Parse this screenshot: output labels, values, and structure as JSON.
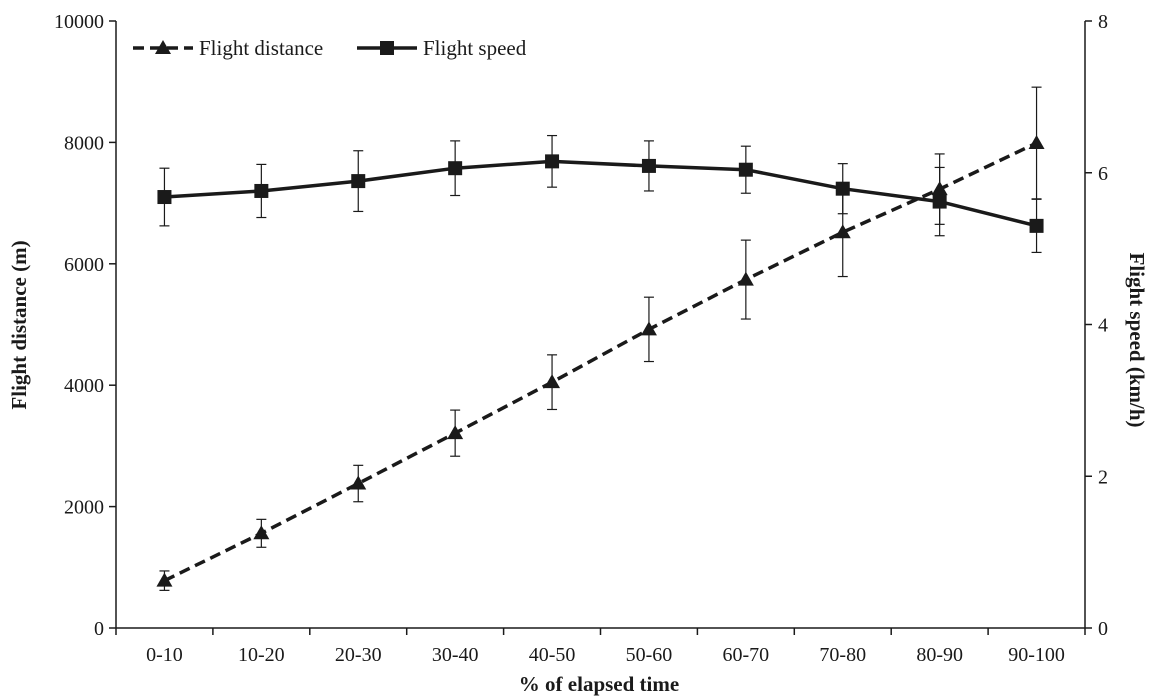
{
  "chart_data": {
    "type": "line",
    "categories": [
      "0-10",
      "10-20",
      "20-30",
      "30-40",
      "40-50",
      "50-60",
      "60-70",
      "70-80",
      "80-90",
      "90-100"
    ],
    "xlabel": "% of elapsed time",
    "ylabel": "Flight distance (m)",
    "y2label": "Flight speed (km/h)",
    "ylim": [
      0,
      10000
    ],
    "yticks": [
      0,
      2000,
      4000,
      6000,
      8000,
      10000
    ],
    "y2lim": [
      0,
      8
    ],
    "y2ticks": [
      0,
      2,
      4,
      6,
      8
    ],
    "grid": false,
    "legend_position": "top-left",
    "series": [
      {
        "name": "Flight distance",
        "axis": "left",
        "marker": "triangle",
        "line_style": "dashed",
        "color": "#1a1a1a",
        "values": [
          780,
          1560,
          2380,
          3210,
          4050,
          4920,
          5740,
          6520,
          7230,
          7990
        ],
        "error": [
          160,
          230,
          300,
          380,
          450,
          530,
          650,
          730,
          580,
          920
        ]
      },
      {
        "name": "Flight speed",
        "axis": "right",
        "marker": "square",
        "line_style": "solid",
        "color": "#1a1a1a",
        "values": [
          5.68,
          5.76,
          5.89,
          6.06,
          6.15,
          6.09,
          6.04,
          5.79,
          5.62,
          5.3
        ],
        "error": [
          0.38,
          0.35,
          0.4,
          0.36,
          0.34,
          0.33,
          0.31,
          0.33,
          0.45,
          0.35
        ]
      }
    ]
  }
}
